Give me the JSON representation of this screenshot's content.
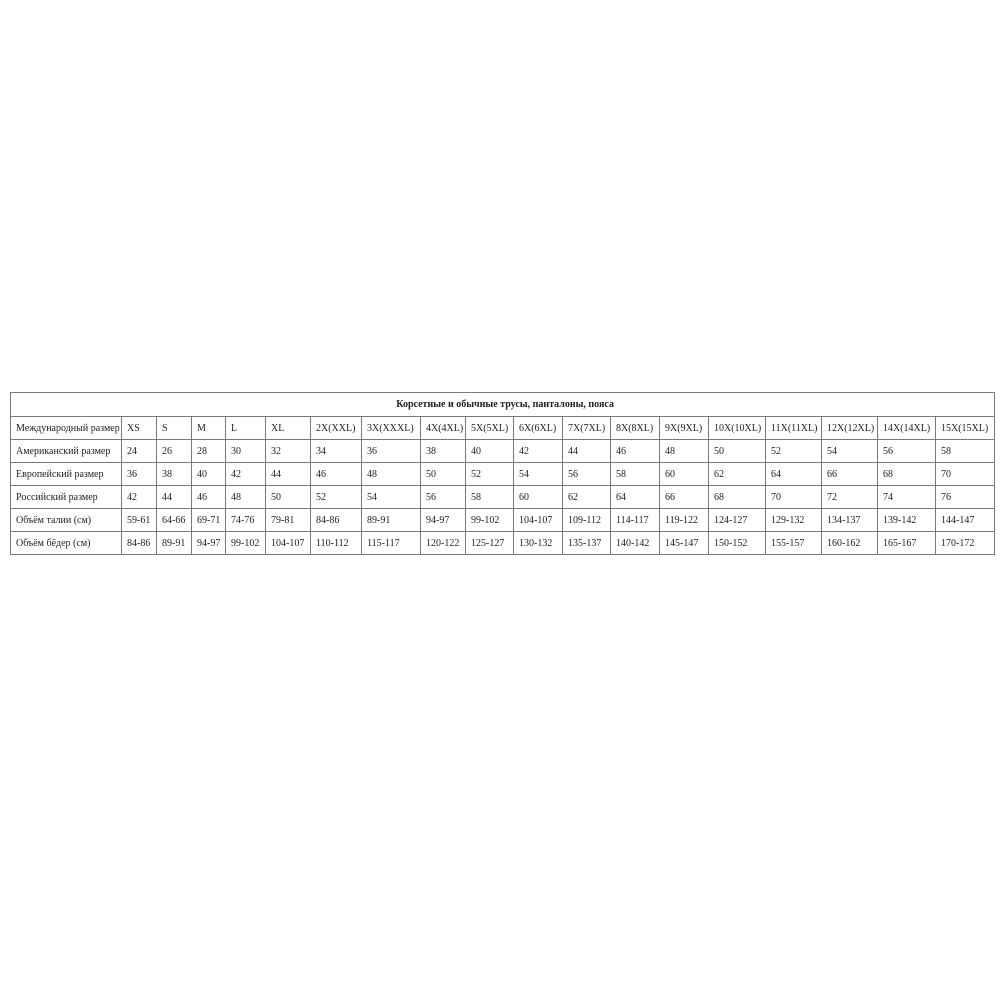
{
  "title": "Корсетные и обычные трусы, панталоны, пояса",
  "rows": [
    {
      "label": "Международный размер",
      "cells": [
        "XS",
        "S",
        "M",
        "L",
        "XL",
        "2X(XXL)",
        "3X(XXXL)",
        "4X(4XL)",
        "5X(5XL)",
        "6X(6XL)",
        "7X(7XL)",
        "8X(8XL)",
        "9X(9XL)",
        "10X(10XL)",
        "11X(11XL)",
        "12X(12XL)",
        "14X(14XL)",
        "15X(15XL)"
      ]
    },
    {
      "label": "Американский размер",
      "cells": [
        "24",
        "26",
        "28",
        "30",
        "32",
        "34",
        "36",
        "38",
        "40",
        "42",
        "44",
        "46",
        "48",
        "50",
        "52",
        "54",
        "56",
        "58"
      ]
    },
    {
      "label": "Европейский размер",
      "cells": [
        "36",
        "38",
        "40",
        "42",
        "44",
        "46",
        "48",
        "50",
        "52",
        "54",
        "56",
        "58",
        "60",
        "62",
        "64",
        "66",
        "68",
        "70"
      ]
    },
    {
      "label": "Российский размер",
      "cells": [
        "42",
        "44",
        "46",
        "48",
        "50",
        "52",
        "54",
        "56",
        "58",
        "60",
        "62",
        "64",
        "66",
        "68",
        "70",
        "72",
        "74",
        "76"
      ]
    },
    {
      "label": "Объём талии (см)",
      "cells": [
        "59-61",
        "64-66",
        "69-71",
        "74-76",
        "79-81",
        "84-86",
        "89-91",
        "94-97",
        "99-102",
        "104-107",
        "109-112",
        "114-117",
        "119-122",
        "124-127",
        "129-132",
        "134-137",
        "139-142",
        "144-147"
      ]
    },
    {
      "label": "Объём бёдер (см)",
      "cells": [
        "84-86",
        "89-91",
        "94-97",
        "99-102",
        "104-107",
        "110-112",
        "115-117",
        "120-122",
        "125-127",
        "130-132",
        "135-137",
        "140-142",
        "145-147",
        "150-152",
        "155-157",
        "160-162",
        "165-167",
        "170-172"
      ]
    }
  ]
}
